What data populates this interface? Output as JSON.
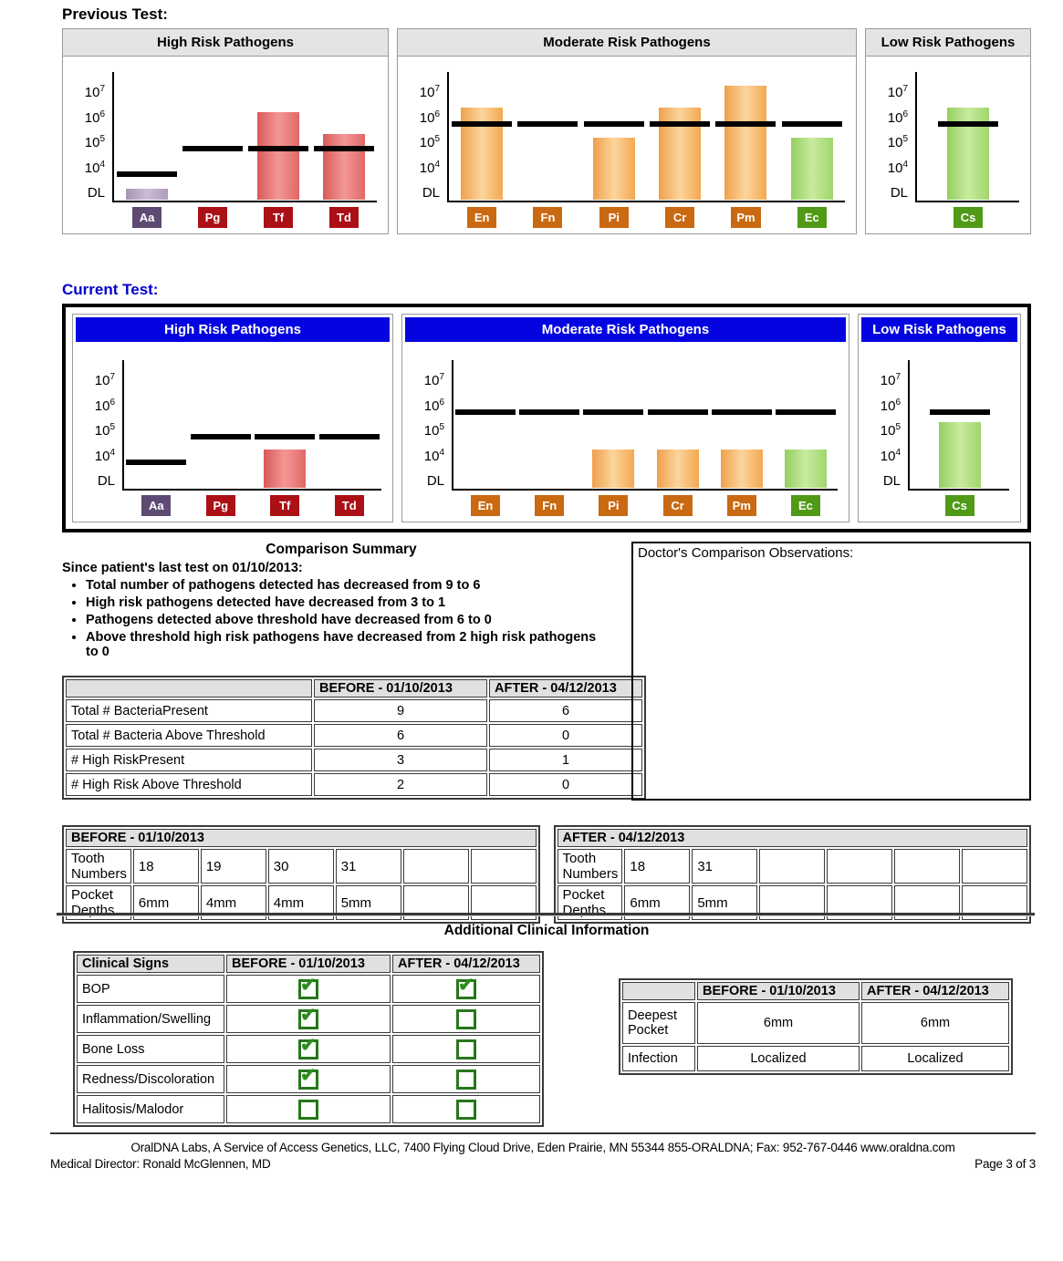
{
  "previous_test_label": "Previous Test:",
  "current_test_label": "Current Test:",
  "chart_data": {
    "type": "bar",
    "scale": "log10 copies, DL = detection limit",
    "y_axis_labels": [
      "10^7",
      "10^6",
      "10^5",
      "10^4",
      "DL"
    ],
    "groups": [
      {
        "test": "previous",
        "panels": [
          {
            "title": "High Risk Pathogens",
            "size": "high",
            "bars": [
              {
                "label": "Aa",
                "value": 1200,
                "threshold": 5000,
                "color": "purple"
              },
              {
                "label": "Pg",
                "value": null,
                "threshold": 50000,
                "color": "red"
              },
              {
                "label": "Tf",
                "value": 1400000,
                "threshold": 50000,
                "color": "red"
              },
              {
                "label": "Td",
                "value": 180000,
                "threshold": 50000,
                "color": "red"
              }
            ]
          },
          {
            "title": "Moderate Risk Pathogens",
            "size": "mod",
            "bars": [
              {
                "label": "En",
                "value": 2000000,
                "threshold": 500000,
                "color": "orange"
              },
              {
                "label": "Fn",
                "value": null,
                "threshold": 500000,
                "color": "orange"
              },
              {
                "label": "Pi",
                "value": 130000,
                "threshold": 500000,
                "color": "orange"
              },
              {
                "label": "Cr",
                "value": 2000000,
                "threshold": 500000,
                "color": "orange"
              },
              {
                "label": "Pm",
                "value": 15000000,
                "threshold": 500000,
                "color": "orange"
              },
              {
                "label": "Ec",
                "value": 130000,
                "threshold": 500000,
                "color": "green"
              }
            ]
          },
          {
            "title": "Low Risk Pathogens",
            "size": "low",
            "bars": [
              {
                "label": "Cs",
                "value": 2000000,
                "threshold": 500000,
                "color": "green"
              }
            ]
          }
        ]
      },
      {
        "test": "current",
        "panels": [
          {
            "title": "High Risk Pathogens",
            "size": "high",
            "bars": [
              {
                "label": "Aa",
                "value": null,
                "threshold": 5000,
                "color": "purple"
              },
              {
                "label": "Pg",
                "value": null,
                "threshold": 50000,
                "color": "red"
              },
              {
                "label": "Tf",
                "value": 15000,
                "threshold": 50000,
                "color": "red"
              },
              {
                "label": "Td",
                "value": null,
                "threshold": 50000,
                "color": "red"
              }
            ]
          },
          {
            "title": "Moderate Risk Pathogens",
            "size": "mod",
            "bars": [
              {
                "label": "En",
                "value": null,
                "threshold": 500000,
                "color": "orange"
              },
              {
                "label": "Fn",
                "value": null,
                "threshold": 500000,
                "color": "orange"
              },
              {
                "label": "Pi",
                "value": 15000,
                "threshold": 500000,
                "color": "orange"
              },
              {
                "label": "Cr",
                "value": 15000,
                "threshold": 500000,
                "color": "orange"
              },
              {
                "label": "Pm",
                "value": 15000,
                "threshold": 500000,
                "color": "orange"
              },
              {
                "label": "Ec",
                "value": 15000,
                "threshold": 500000,
                "color": "green"
              }
            ]
          },
          {
            "title": "Low Risk Pathogens",
            "size": "low",
            "bars": [
              {
                "label": "Cs",
                "value": 180000,
                "threshold": 500000,
                "color": "green"
              }
            ]
          }
        ]
      }
    ]
  },
  "comparison_summary": {
    "title": "Comparison Summary",
    "intro": "Since patient's last test on 01/10/2013:",
    "bullets": [
      "Total number of pathogens detected has decreased from 9 to 6",
      "High risk pathogens detected have decreased from 3 to 1",
      "Pathogens detected above threshold have decreased from 6 to 0",
      "Above threshold high risk pathogens have decreased from 2 high risk pathogens to 0"
    ]
  },
  "comparison_table": {
    "headers": [
      "",
      "BEFORE - 01/10/2013",
      "AFTER - 04/12/2013"
    ],
    "rows": [
      {
        "label": "Total # BacteriaPresent",
        "before": "9",
        "after": "6"
      },
      {
        "label": "Total # Bacteria Above Threshold",
        "before": "6",
        "after": "0"
      },
      {
        "label": "# High RiskPresent",
        "before": "3",
        "after": "1"
      },
      {
        "label": "# High Risk Above Threshold",
        "before": "2",
        "after": "0"
      }
    ]
  },
  "observations_label": "Doctor's Comparison Observations:",
  "before_table": {
    "title": "BEFORE - 01/10/2013",
    "rows": [
      {
        "label": "Tooth Numbers",
        "cells": [
          "18",
          "19",
          "30",
          "31",
          "",
          ""
        ]
      },
      {
        "label": "Pocket Depths",
        "cells": [
          "6mm",
          "4mm",
          "4mm",
          "5mm",
          "",
          ""
        ]
      }
    ]
  },
  "after_table": {
    "title": "AFTER - 04/12/2013",
    "rows": [
      {
        "label": "Tooth Numbers",
        "cells": [
          "18",
          "31",
          "",
          "",
          "",
          ""
        ]
      },
      {
        "label": "Pocket Depths",
        "cells": [
          "6mm",
          "5mm",
          "",
          "",
          "",
          ""
        ]
      }
    ]
  },
  "additional_clinical": {
    "title": "Additional Clinical Information",
    "clinical_table": {
      "headers": [
        "Clinical Signs",
        "BEFORE - 01/10/2013",
        "AFTER - 04/12/2013"
      ],
      "rows": [
        {
          "label": "BOP",
          "before": true,
          "after": true
        },
        {
          "label": "Inflammation/Swelling",
          "before": true,
          "after": false
        },
        {
          "label": "Bone Loss",
          "before": true,
          "after": false
        },
        {
          "label": "Redness/Discoloration",
          "before": true,
          "after": false
        },
        {
          "label": "Halitosis/Malodor",
          "before": false,
          "after": false
        }
      ]
    },
    "pocket_table": {
      "headers": [
        "",
        "BEFORE - 01/10/2013",
        "AFTER - 04/12/2013"
      ],
      "rows": [
        {
          "label": "Deepest Pocket",
          "before": "6mm",
          "after": "6mm"
        },
        {
          "label": "Infection",
          "before": "Localized",
          "after": "Localized"
        }
      ]
    }
  },
  "footer": {
    "line1": "OralDNA Labs, A Service of Access Genetics, LLC, 7400 Flying Cloud Drive, Eden Prairie, MN 55344   855-ORALDNA; Fax: 952-767-0446  www.oraldna.com",
    "line2_left": "Medical Director: Ronald McGlennen, MD",
    "line2_right": "Page 3 of 3"
  },
  "colors": {
    "header_blue": "#0404e0",
    "title_blue": "#0000cc",
    "panel_header_gray": "#e4e4e4",
    "bar_red": "#e06866",
    "bar_orange": "#f3a851",
    "bar_green": "#a0d66c",
    "bar_purple": "#af9cbe",
    "label_red": "#ab1016",
    "label_orange": "#c96912",
    "label_green": "#509a17",
    "label_purple": "#5e4a73",
    "checkbox_green": "#2e8c1f",
    "threshold_black": "#000000"
  }
}
